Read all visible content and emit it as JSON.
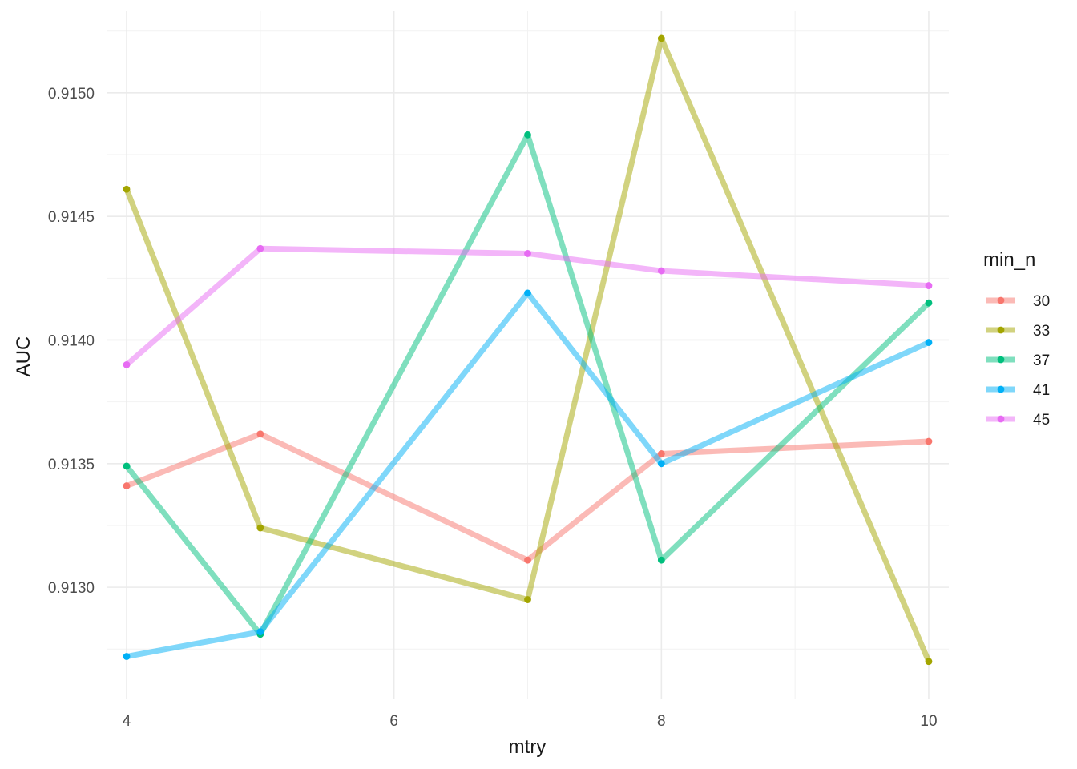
{
  "chart_data": {
    "type": "line",
    "title": "",
    "xlabel": "mtry",
    "ylabel": "AUC",
    "x": [
      4,
      5,
      7,
      8,
      10
    ],
    "xlim": [
      3.85,
      10.15
    ],
    "ylim": [
      0.91255,
      0.91533
    ],
    "x_ticks": [
      4,
      6,
      8,
      10
    ],
    "y_ticks": [
      0.913,
      0.9135,
      0.914,
      0.9145,
      0.915
    ],
    "x_tick_labels": [
      "4",
      "6",
      "8",
      "10"
    ],
    "y_tick_labels": [
      "0.9130",
      "0.9135",
      "0.9140",
      "0.9145",
      "0.9150"
    ],
    "grid": true,
    "legend": {
      "title": "min_n",
      "position": "right"
    },
    "series": [
      {
        "name": "30",
        "color": "#F8766D",
        "values": [
          0.91341,
          0.91362,
          0.91311,
          0.91354,
          0.91359
        ]
      },
      {
        "name": "33",
        "color": "#A3A500",
        "values": [
          0.91461,
          0.91324,
          0.91295,
          0.91522,
          0.9127
        ]
      },
      {
        "name": "37",
        "color": "#00BF7D",
        "values": [
          0.91349,
          0.91281,
          0.91483,
          0.91311,
          0.91415
        ]
      },
      {
        "name": "41",
        "color": "#00B0F6",
        "values": [
          0.91272,
          0.91282,
          0.91419,
          0.9135,
          0.91399
        ]
      },
      {
        "name": "45",
        "color": "#E76BF3",
        "values": [
          0.9139,
          0.91437,
          0.91435,
          0.91428,
          0.91422
        ]
      }
    ]
  }
}
